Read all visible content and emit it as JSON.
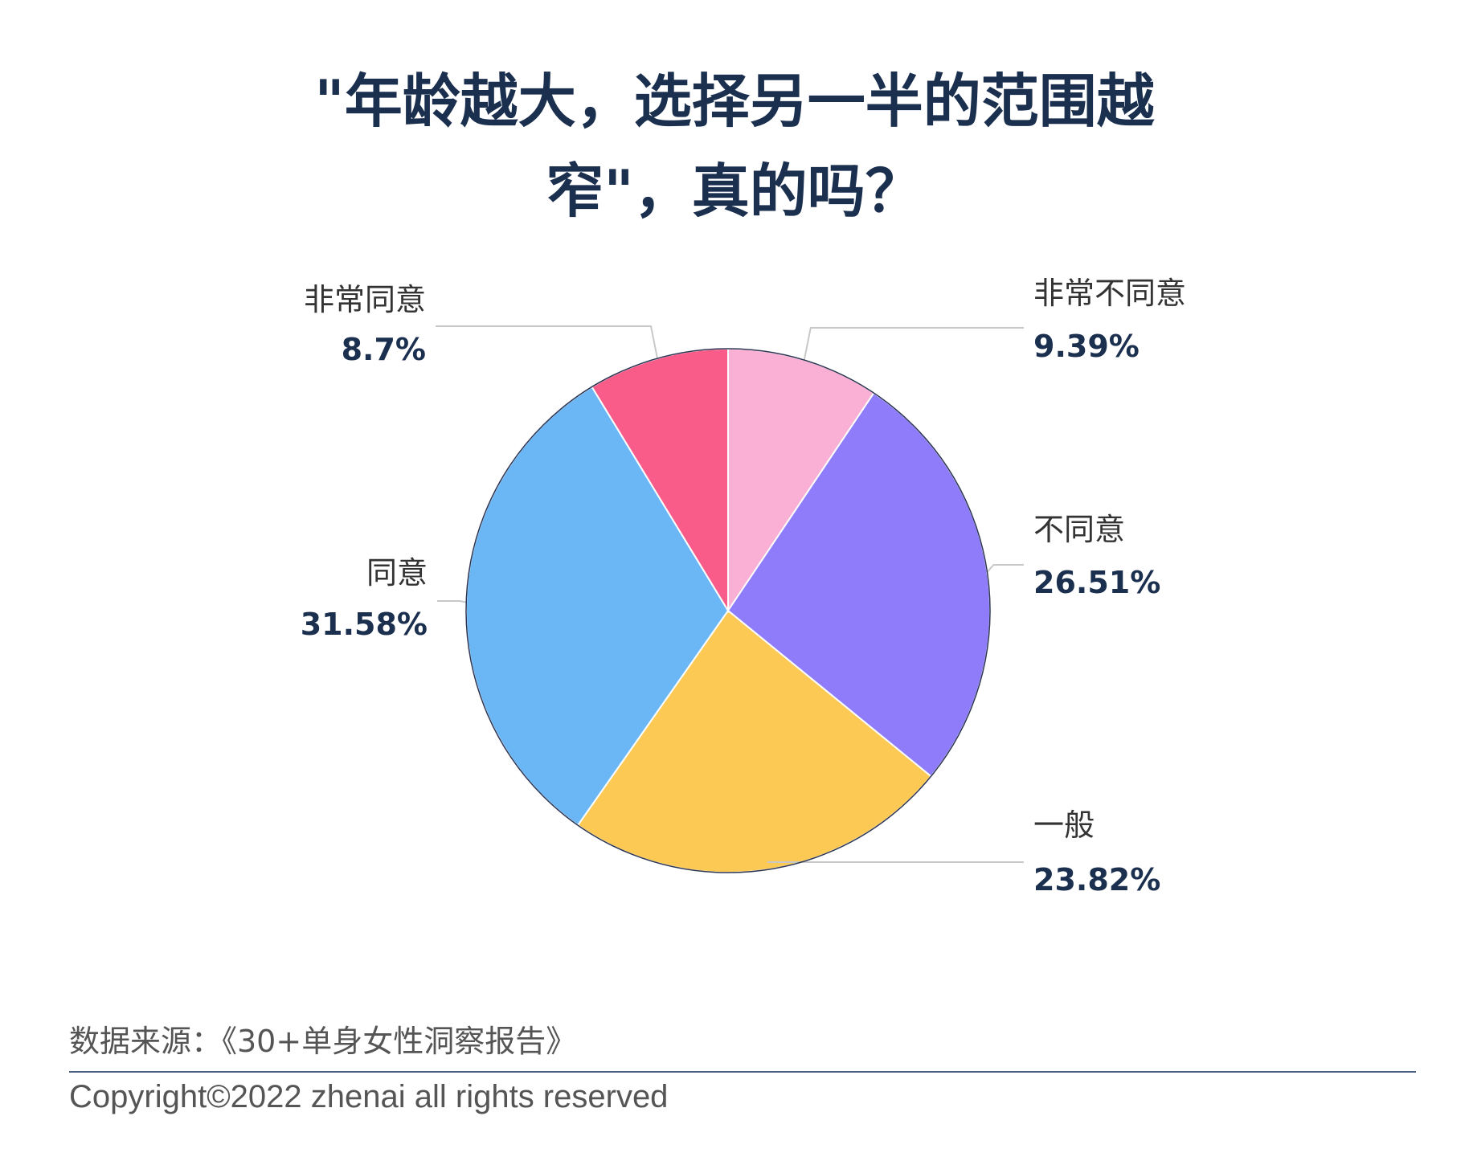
{
  "chart_data": {
    "type": "pie",
    "title_lines": [
      "\"年龄越大，选择另一半的范围越",
      "窄\"，真的吗？"
    ],
    "slices": [
      {
        "label": "非常不同意",
        "value": 9.39,
        "display": "9.39%",
        "color": "#f9b0d4"
      },
      {
        "label": "不同意",
        "value": 26.51,
        "display": "26.51%",
        "color": "#8e7cfb"
      },
      {
        "label": "一般",
        "value": 23.82,
        "display": "23.82%",
        "color": "#fbc954"
      },
      {
        "label": "同意",
        "value": 31.58,
        "display": "31.58%",
        "color": "#6bb7f5"
      },
      {
        "label": "非常同意",
        "value": 8.7,
        "display": "8.7%",
        "color": "#fa5c89"
      }
    ],
    "start": "12 o'clock",
    "direction": "clockwise",
    "legend": "none"
  },
  "footer": {
    "source": "数据来源：《30+单身女性洞察报告》",
    "copyright": "Copyright©2022  zhenai  all rights reserved"
  },
  "colors": {
    "title": "#1b2f4f",
    "value_text": "#1b2f4f",
    "label_text": "#333333",
    "leader_line": "#c8c8c8",
    "pie_outline": "#2c3552",
    "divider": "#4a5d82"
  }
}
